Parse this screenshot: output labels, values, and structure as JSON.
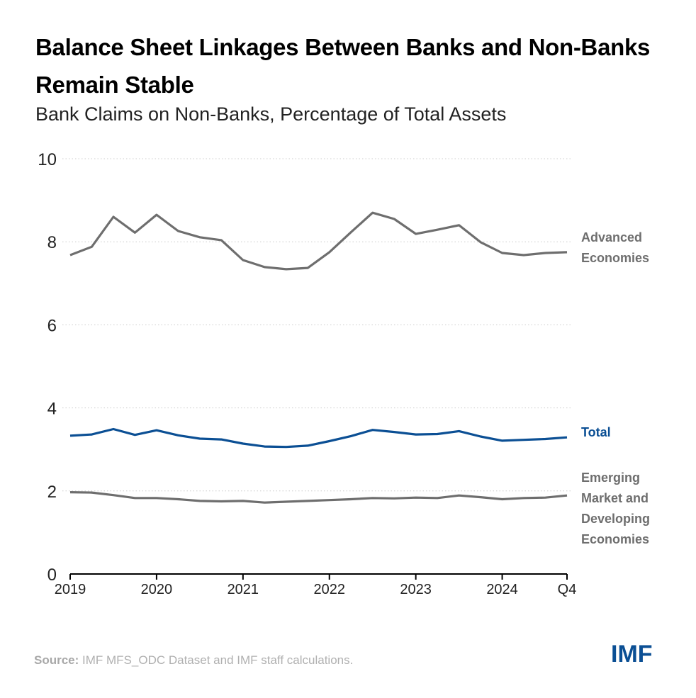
{
  "title": "Balance Sheet Linkages Between Banks and Non-Banks Remain Stable",
  "subtitle": "Bank Claims on Non-Banks, Percentage of Total Assets",
  "source_label": "Source:",
  "source_text": " IMF MFS_ODC Dataset and IMF staff calculations.",
  "logo_text": "IMF",
  "colors": {
    "total": "#0B4F94",
    "gray": "#6E6E6E",
    "axis": "#000000",
    "grid": "#CCCCCC"
  },
  "chart_data": {
    "type": "line",
    "title": "Balance Sheet Linkages Between Banks and Non-Banks Remain Stable",
    "subtitle": "Bank Claims on Non-Banks, Percentage of Total Assets",
    "xlabel": "",
    "ylabel": "",
    "ylim": [
      0,
      10
    ],
    "yticks": [
      0,
      2,
      4,
      6,
      8,
      10
    ],
    "grid": true,
    "x": [
      "2019Q1",
      "2019Q2",
      "2019Q3",
      "2019Q4",
      "2020Q1",
      "2020Q2",
      "2020Q3",
      "2020Q4",
      "2021Q1",
      "2021Q2",
      "2021Q3",
      "2021Q4",
      "2022Q1",
      "2022Q2",
      "2022Q3",
      "2022Q4",
      "2023Q1",
      "2023Q2",
      "2023Q3",
      "2023Q4",
      "2024Q1",
      "2024Q2",
      "2024Q3",
      "2024Q4"
    ],
    "xticks": [
      {
        "index": 0,
        "label": "2019"
      },
      {
        "index": 4,
        "label": "2020"
      },
      {
        "index": 8,
        "label": "2021"
      },
      {
        "index": 12,
        "label": "2022"
      },
      {
        "index": 16,
        "label": "2023"
      },
      {
        "index": 20,
        "label": "2024"
      },
      {
        "index": 23,
        "label": "Q4"
      }
    ],
    "series": [
      {
        "name": "Advanced Economies",
        "label_lines": [
          "Advanced",
          "Economies"
        ],
        "color": "#6E6E6E",
        "values": [
          7.68,
          7.88,
          8.6,
          8.22,
          8.65,
          8.26,
          8.11,
          8.04,
          7.56,
          7.39,
          7.34,
          7.37,
          7.75,
          8.23,
          8.7,
          8.55,
          8.19,
          8.29,
          8.4,
          7.99,
          7.73,
          7.68,
          7.73,
          7.75
        ]
      },
      {
        "name": "Total",
        "label_lines": [
          "Total"
        ],
        "color": "#0B4F94",
        "values": [
          3.33,
          3.36,
          3.49,
          3.35,
          3.46,
          3.34,
          3.26,
          3.24,
          3.14,
          3.07,
          3.06,
          3.09,
          3.2,
          3.32,
          3.47,
          3.42,
          3.36,
          3.37,
          3.44,
          3.31,
          3.21,
          3.23,
          3.25,
          3.29
        ]
      },
      {
        "name": "Emerging Market and Developing Economies",
        "label_lines": [
          "Emerging",
          "Market and",
          "Developing",
          "Economies"
        ],
        "color": "#6E6E6E",
        "values": [
          1.97,
          1.96,
          1.9,
          1.83,
          1.83,
          1.8,
          1.76,
          1.75,
          1.76,
          1.72,
          1.74,
          1.76,
          1.78,
          1.8,
          1.83,
          1.82,
          1.84,
          1.83,
          1.89,
          1.85,
          1.8,
          1.83,
          1.84,
          1.89
        ]
      }
    ],
    "legend": "direct labels right of lines"
  }
}
